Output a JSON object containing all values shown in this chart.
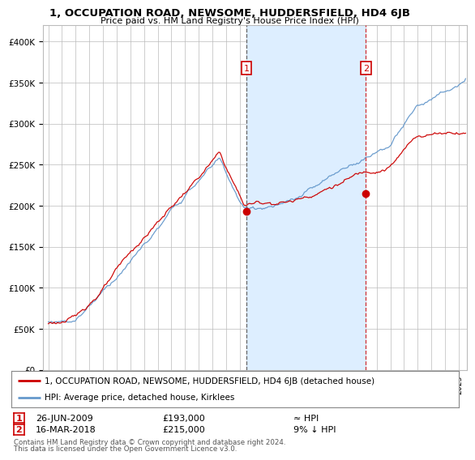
{
  "title": "1, OCCUPATION ROAD, NEWSOME, HUDDERSFIELD, HD4 6JB",
  "subtitle": "Price paid vs. HM Land Registry's House Price Index (HPI)",
  "legend_line1": "1, OCCUPATION ROAD, NEWSOME, HUDDERSFIELD, HD4 6JB (detached house)",
  "legend_line2": "HPI: Average price, detached house, Kirklees",
  "annotation1_date": "26-JUN-2009",
  "annotation1_price": "£193,000",
  "annotation1_hpi": "≈ HPI",
  "annotation2_date": "16-MAR-2018",
  "annotation2_price": "£215,000",
  "annotation2_hpi": "9% ↓ HPI",
  "footer1": "Contains HM Land Registry data © Crown copyright and database right 2024.",
  "footer2": "This data is licensed under the Open Government Licence v3.0.",
  "red_color": "#cc0000",
  "blue_color": "#6699cc",
  "shade_color": "#ddeeff",
  "grid_color": "#bbbbbb",
  "background_color": "#ffffff",
  "annotation_box_color": "#cc0000",
  "ylim": [
    0,
    420000
  ],
  "yticks": [
    0,
    50000,
    100000,
    150000,
    200000,
    250000,
    300000,
    350000,
    400000
  ],
  "sale1_x": 2009.49,
  "sale1_y": 193000,
  "sale2_x": 2018.21,
  "sale2_y": 215000,
  "shade_x_start": 2009.49,
  "shade_x_end": 2018.21,
  "xlim_start": 1994.6,
  "xlim_end": 2025.6
}
